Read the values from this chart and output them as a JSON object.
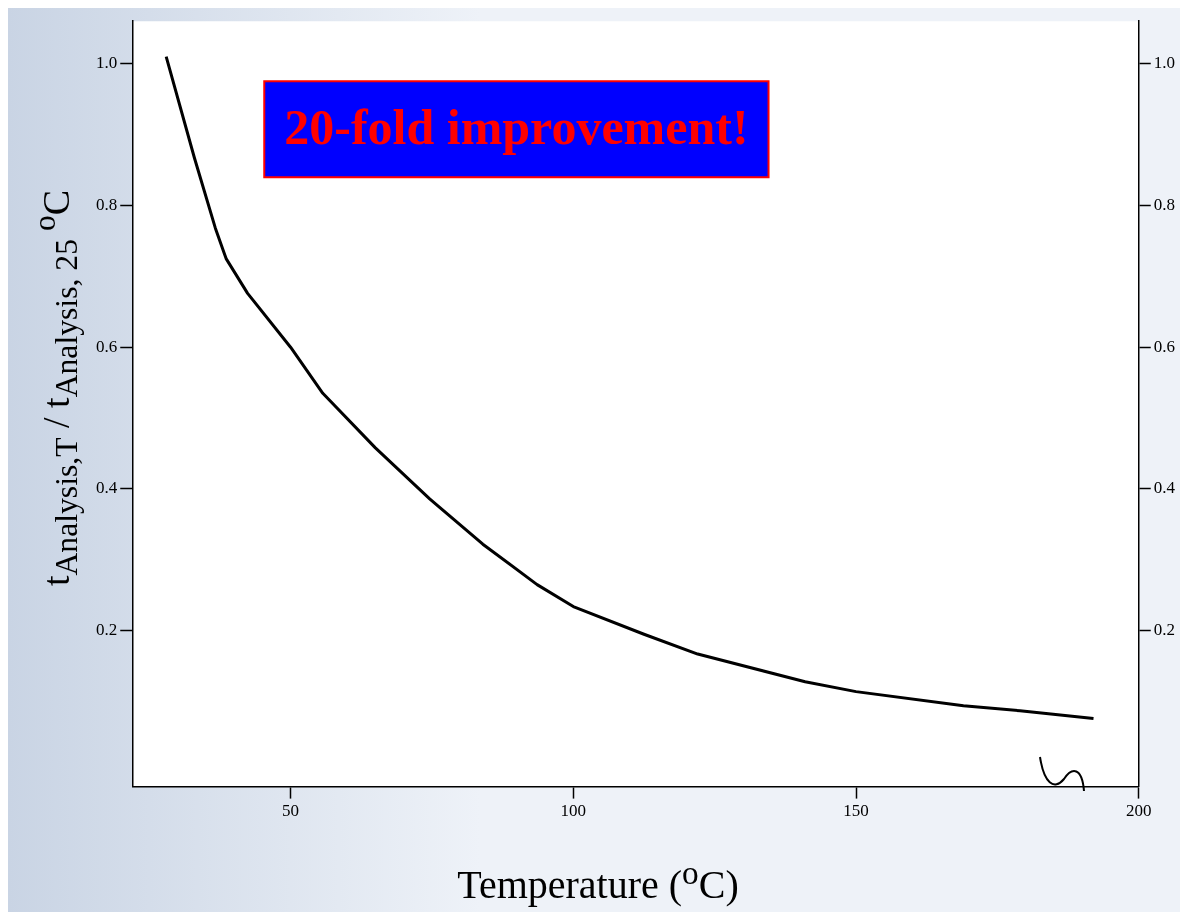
{
  "chart_data": {
    "type": "line",
    "xlabel": "Temperature ($^{o}$C)",
    "ylabel": "t$_{Analysis,T}$ / t$_{Analysis, 25 }$$^{o}$C",
    "annotations": [
      "20-fold improvement!"
    ],
    "x": [
      28,
      33,
      36.7,
      38.6,
      42.4,
      50,
      55.7,
      65,
      74.6,
      84,
      93.6,
      100,
      112.5,
      122,
      141,
      150,
      169,
      179,
      192
    ],
    "series": [
      {
        "color": "#000000",
        "values": [
          1.01,
          0.867,
          0.768,
          0.725,
          0.676,
          0.6,
          0.535,
          0.458,
          0.386,
          0.322,
          0.265,
          0.234,
          0.195,
          0.167,
          0.128,
          0.114,
          0.094,
          0.087,
          0.076
        ]
      }
    ],
    "xlim": [
      22,
      200
    ],
    "xticks": [
      50,
      100,
      150,
      200
    ],
    "ylim": [
      -0.02,
      1.06
    ],
    "yticks": [
      0.2,
      0.4,
      0.6,
      0.8,
      {
        "value": 1,
        "label": "1.0"
      }
    ],
    "y2lim": [
      -0.02,
      1.06
    ],
    "y2ticks": [
      0.2,
      0.4,
      0.6,
      0.8,
      {
        "value": 1,
        "label": "1.0"
      }
    ],
    "grid": false,
    "legend": false,
    "marker": "none",
    "line_style": "solid"
  }
}
